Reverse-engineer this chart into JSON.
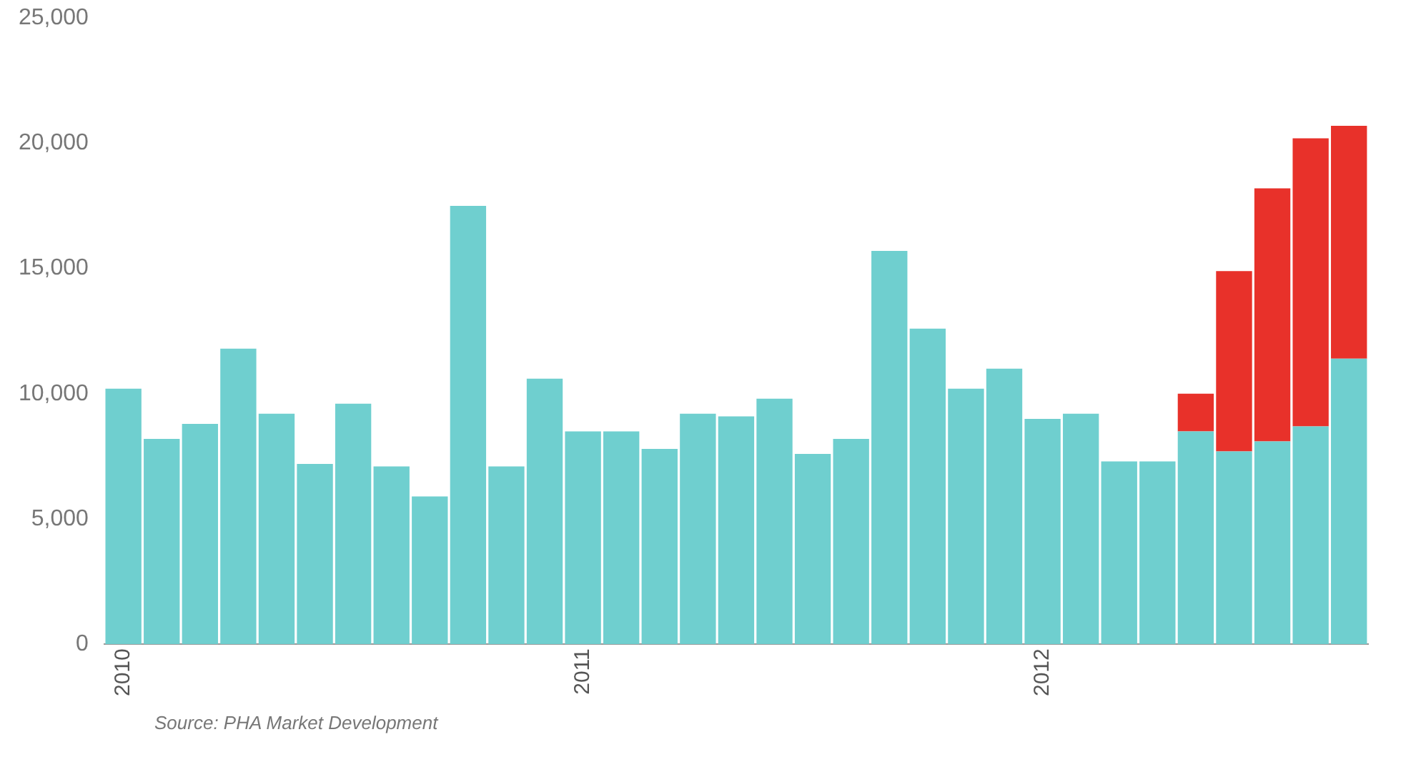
{
  "chart_data": {
    "type": "bar",
    "stacked": true,
    "categories": [
      "2010",
      null,
      null,
      null,
      null,
      null,
      null,
      null,
      null,
      null,
      null,
      null,
      "2011",
      null,
      null,
      null,
      null,
      null,
      null,
      null,
      null,
      null,
      null,
      null,
      "2012",
      null,
      null,
      null,
      null,
      null,
      null,
      null,
      null
    ],
    "series": [
      {
        "color": "#6fcfcf",
        "values": [
          10200,
          8200,
          8800,
          11800,
          9200,
          7200,
          9600,
          7100,
          5900,
          17500,
          7100,
          10600,
          8500,
          8500,
          7800,
          9200,
          9100,
          9800,
          7600,
          8200,
          15700,
          12600,
          10200,
          11000,
          9000,
          9200,
          7300,
          7300,
          8500,
          7700,
          8100,
          8700,
          11400
        ]
      },
      {
        "color": "#e8312a",
        "values": [
          null,
          null,
          null,
          null,
          null,
          null,
          null,
          null,
          null,
          null,
          null,
          null,
          null,
          null,
          null,
          null,
          null,
          null,
          null,
          null,
          null,
          null,
          null,
          null,
          null,
          null,
          null,
          null,
          1500,
          7200,
          10100,
          11500,
          9300
        ]
      }
    ],
    "ylim": [
      0,
      25000
    ],
    "yticks": [
      0,
      {
        "value": 5000,
        "label": "5,000"
      },
      {
        "value": 10000,
        "label": "10,000"
      },
      {
        "value": 15000,
        "label": "15,000"
      },
      {
        "value": 20000,
        "label": "20,000"
      },
      {
        "value": 25000,
        "label": "25,000"
      }
    ],
    "grid": false,
    "legend": false,
    "annotations": [
      "Source: PHA Market Development"
    ]
  }
}
